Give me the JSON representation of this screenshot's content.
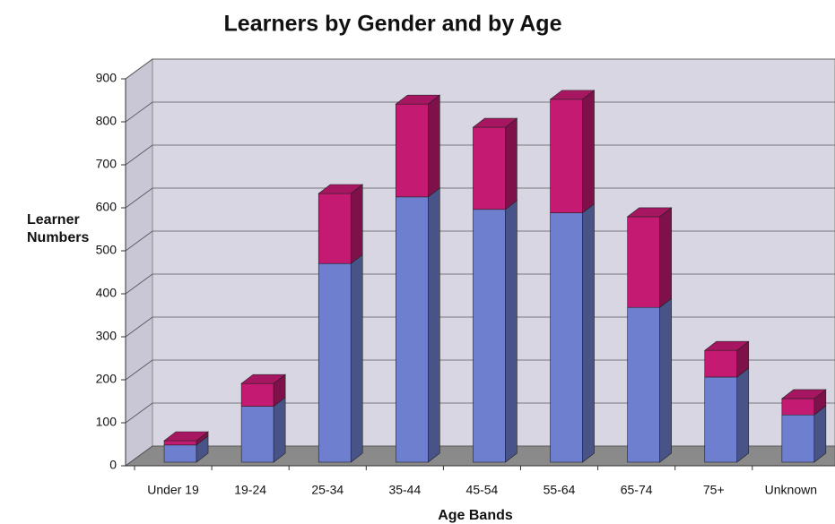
{
  "chart_data": {
    "type": "bar",
    "stacked": true,
    "three_d": true,
    "title": "Learners by Gender and by Age",
    "x_label": "Age Bands",
    "y_label": "Learner Numbers",
    "categories": [
      "Under 19",
      "19-24",
      "25-34",
      "35-44",
      "45-54",
      "55-64",
      "65-74",
      "75+",
      "Unknown"
    ],
    "series": [
      {
        "color": "#6f7fd0",
        "values": [
          40,
          130,
          462,
          617,
          588,
          580,
          360,
          198,
          110
        ]
      },
      {
        "color": "#c41a72",
        "values": [
          10,
          53,
          163,
          216,
          191,
          264,
          211,
          62,
          38
        ]
      }
    ],
    "ylim": [
      0,
      900
    ],
    "yticks": [
      0,
      100,
      200,
      300,
      400,
      500,
      600,
      700,
      800,
      900
    ],
    "grid": true
  }
}
